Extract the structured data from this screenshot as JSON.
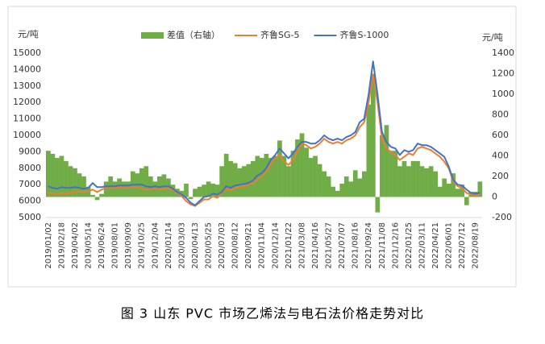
{
  "chart_data": {
    "type": "bar-line",
    "y_label": "元/吨",
    "y2_label": "元/吨",
    "caption": "图 3  山东 PVC 市场乙烯法与电石法价格走势对比",
    "categories": [
      "2019/01/02",
      null,
      null,
      "2019/02/18",
      null,
      null,
      "2019/04/02",
      null,
      null,
      "2019/05/14",
      null,
      null,
      "2019/06/24",
      null,
      null,
      "2019/08/01",
      null,
      null,
      "2019/09/09",
      null,
      null,
      "2019/10/25",
      null,
      null,
      "2019/12/04",
      null,
      null,
      "2020/01/14",
      null,
      null,
      "2020/03/03",
      null,
      null,
      "2020/04/13",
      null,
      null,
      "2020/05/25",
      null,
      null,
      "2020/07/03",
      null,
      null,
      "2020/08/12",
      null,
      null,
      "2020/09/21",
      null,
      null,
      "2020/11/04",
      null,
      null,
      "2020/12/14",
      null,
      null,
      "2021/01/22",
      null,
      null,
      "2021/03/08",
      null,
      null,
      "2021/04/16",
      null,
      null,
      "2021/05/27",
      null,
      null,
      "2021/07/07",
      null,
      null,
      "2021/08/16",
      null,
      null,
      "2021/09/24",
      null,
      null,
      "2021/11/08",
      null,
      null,
      "2021/12/16",
      null,
      null,
      "2022/01/25",
      null,
      null,
      "2022/03/11",
      null,
      null,
      "2022/04/21",
      null,
      null,
      "2022/06/01",
      null,
      null,
      "2022/07/12",
      null,
      null,
      "2022/08/19",
      null
    ],
    "series": [
      {
        "name": "差值（右轴）",
        "color": "#70ad47",
        "axis": "y2",
        "kind": "bar",
        "values": [
          450,
          420,
          380,
          400,
          350,
          300,
          280,
          230,
          200,
          100,
          20,
          -30,
          30,
          150,
          200,
          150,
          180,
          150,
          150,
          250,
          230,
          280,
          300,
          200,
          150,
          200,
          220,
          180,
          120,
          80,
          60,
          130,
          -20,
          80,
          100,
          120,
          150,
          130,
          120,
          300,
          420,
          350,
          330,
          280,
          300,
          320,
          350,
          400,
          380,
          420,
          380,
          400,
          550,
          400,
          300,
          450,
          560,
          620,
          480,
          380,
          400,
          320,
          250,
          200,
          100,
          60,
          130,
          200,
          150,
          260,
          180,
          250,
          900,
          1200,
          -150,
          600,
          700,
          450,
          450,
          300,
          350,
          300,
          350,
          350,
          300,
          280,
          300,
          250,
          100,
          180,
          130,
          230,
          80,
          120,
          -80,
          50,
          50,
          150
        ]
      },
      {
        "name": "齐鲁SG-5",
        "color": "#ed7d31",
        "kind": "line",
        "values": [
          6500,
          6450,
          6400,
          6450,
          6450,
          6500,
          6550,
          6600,
          6550,
          6600,
          6700,
          6550,
          6700,
          6800,
          6800,
          6800,
          6850,
          6800,
          6800,
          6850,
          6850,
          6750,
          6700,
          6700,
          6750,
          6700,
          6750,
          6800,
          6650,
          6500,
          6300,
          6000,
          5800,
          5700,
          5900,
          6100,
          6100,
          6300,
          6200,
          6500,
          6800,
          6650,
          6800,
          6850,
          6900,
          7000,
          7100,
          7300,
          7500,
          7800,
          8200,
          8600,
          8800,
          8400,
          8200,
          8500,
          9000,
          9500,
          9400,
          9200,
          9300,
          9500,
          9800,
          9600,
          9500,
          9600,
          9500,
          9700,
          9800,
          10000,
          10500,
          10800,
          12000,
          13700,
          12000,
          9800,
          9200,
          9000,
          8800,
          8500,
          8700,
          8900,
          8800,
          9200,
          9300,
          9200,
          9100,
          8900,
          8700,
          8400,
          8000,
          7200,
          6900,
          6800,
          6500,
          6400,
          6300,
          6400
        ]
      },
      {
        "name": "齐鲁S-1000",
        "color": "#4472c4",
        "kind": "line",
        "values": [
          6900,
          6800,
          6750,
          6850,
          6800,
          6800,
          6850,
          6800,
          6750,
          6800,
          7100,
          6850,
          6850,
          6900,
          6900,
          6900,
          6950,
          6950,
          6950,
          7000,
          7000,
          7000,
          6900,
          6850,
          6900,
          6850,
          6900,
          6900,
          6750,
          6550,
          6400,
          6200,
          5900,
          5750,
          6000,
          6250,
          6300,
          6450,
          6400,
          6550,
          6900,
          6800,
          6950,
          7000,
          7050,
          7100,
          7250,
          7550,
          7700,
          8000,
          8500,
          8800,
          9200,
          8900,
          8600,
          8900,
          9300,
          9600,
          9600,
          9500,
          9500,
          9700,
          10000,
          9800,
          9700,
          9800,
          9700,
          9900,
          10000,
          10200,
          10800,
          11000,
          12500,
          14500,
          12500,
          10200,
          9600,
          9300,
          9200,
          8800,
          9100,
          9000,
          9100,
          9500,
          9400,
          9400,
          9300,
          9100,
          8900,
          8700,
          8100,
          7300,
          7000,
          6950,
          6700,
          6500,
          6450,
          6500
        ]
      }
    ],
    "ylim": [
      5000,
      15000
    ],
    "yticks": [
      5000,
      6000,
      7000,
      8000,
      9000,
      10000,
      11000,
      12000,
      13000,
      14000,
      15000
    ],
    "y2lim": [
      -200,
      1400
    ],
    "y2ticks": [
      -200,
      0,
      200,
      400,
      600,
      800,
      1000,
      1200,
      1400
    ]
  }
}
